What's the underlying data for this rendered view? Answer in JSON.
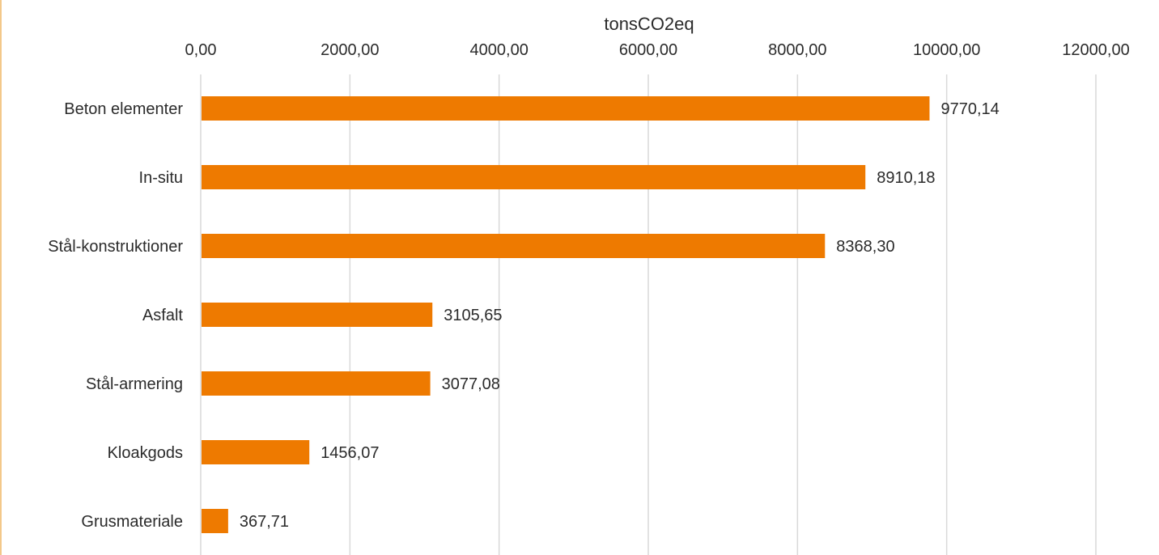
{
  "chart_data": {
    "type": "bar",
    "orientation": "horizontal",
    "xlabel": "tonsCO2eq",
    "ylabel": "",
    "xlim": [
      0,
      12000
    ],
    "x_ticks": [
      0,
      2000,
      4000,
      6000,
      8000,
      10000,
      12000
    ],
    "x_tick_labels": [
      "0,00",
      "2000,00",
      "4000,00",
      "6000,00",
      "8000,00",
      "10000,00",
      "12000,00"
    ],
    "x_axis_position": "top",
    "grid": true,
    "legend": "none",
    "bar_color": "#EE7A00",
    "categories": [
      "Beton elementer",
      "In-situ",
      "Stål-konstruktioner",
      "Asfalt",
      "Stål-armering",
      "Kloakgods",
      "Grusmateriale"
    ],
    "values": [
      9770.14,
      8910.18,
      8368.3,
      3105.65,
      3077.08,
      1456.07,
      367.71
    ],
    "data_labels": [
      "9770,14",
      "8910,18",
      "8368,30",
      "3105,65",
      "3077,08",
      "1456,07",
      "367,71"
    ]
  }
}
